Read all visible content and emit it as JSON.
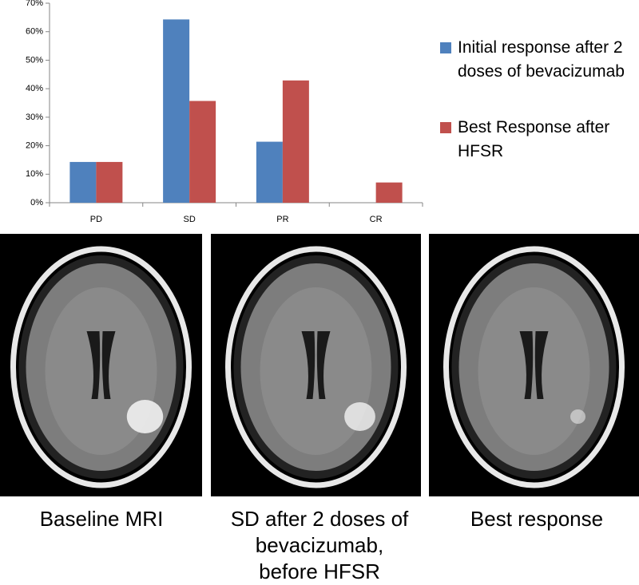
{
  "chart_data": {
    "type": "bar",
    "categories": [
      "PD",
      "SD",
      "PR",
      "CR"
    ],
    "series": [
      {
        "name": "Initial response after 2 doses of bevacizumab",
        "color": "#4f81bd",
        "values": [
          14.3,
          64.3,
          21.4,
          0
        ]
      },
      {
        "name": "Best Response after HFSR",
        "color": "#c0504d",
        "values": [
          14.3,
          35.7,
          42.9,
          7.1
        ]
      }
    ],
    "ylim": [
      0,
      70
    ],
    "yticks": [
      {
        "value": 0,
        "label": "0%"
      },
      {
        "value": 10,
        "label": "10%"
      },
      {
        "value": 20,
        "label": "20%"
      },
      {
        "value": 30,
        "label": "30%"
      },
      {
        "value": 40,
        "label": "40%"
      },
      {
        "value": 50,
        "label": "50%"
      },
      {
        "value": 60,
        "label": "60%"
      },
      {
        "value": 70,
        "label": "70%"
      }
    ],
    "grid": false
  },
  "images": [
    {
      "caption": "Baseline MRI"
    },
    {
      "caption": "SD after 2 doses of bevacizumab, before HFSR"
    },
    {
      "caption": "Best response"
    }
  ]
}
